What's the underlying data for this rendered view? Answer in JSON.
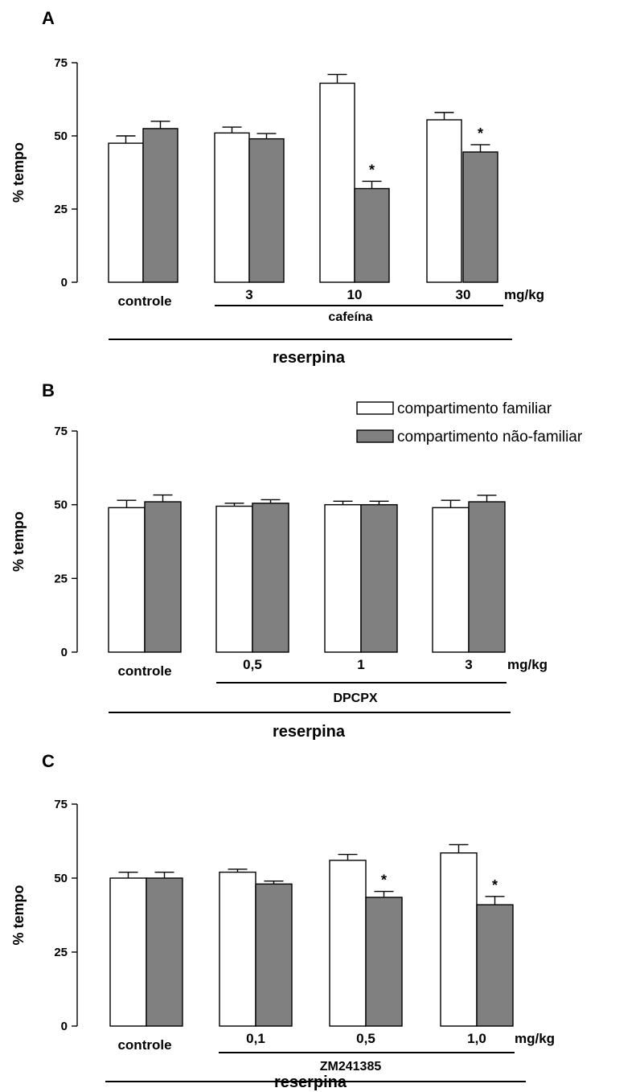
{
  "colors": {
    "compartimento_familiar": "#ffffff",
    "compartimento_nao_familiar": "#808080",
    "axis": "#000000"
  },
  "legend": {
    "items": [
      "compartimento familiar",
      "compartimento não-familiar"
    ]
  },
  "chart_data": [
    {
      "panel": "A",
      "type": "bar",
      "ylabel": "% tempo",
      "ylim": [
        0,
        75
      ],
      "yticks": [
        0,
        25,
        50,
        75
      ],
      "categories": [
        "controle",
        "3",
        "10",
        "30"
      ],
      "unit": "mg/kg",
      "drug": "cafeína",
      "pretreatment": "reserpina",
      "series": [
        {
          "name": "compartimento familiar",
          "values": [
            47.5,
            51,
            68,
            55.5
          ],
          "errors": [
            2.5,
            2,
            3,
            2.5
          ]
        },
        {
          "name": "compartimento não-familiar",
          "values": [
            52.5,
            49,
            32,
            44.5
          ],
          "errors": [
            2.5,
            1.8,
            2.5,
            2.5
          ]
        }
      ],
      "significance": [
        "",
        "",
        "*",
        "*"
      ]
    },
    {
      "panel": "B",
      "type": "bar",
      "ylabel": "% tempo",
      "ylim": [
        0,
        75
      ],
      "yticks": [
        0,
        25,
        50,
        75
      ],
      "categories": [
        "controle",
        "0,5",
        "1",
        "3"
      ],
      "unit": "mg/kg",
      "drug": "DPCPX",
      "pretreatment": "reserpina",
      "series": [
        {
          "name": "compartimento familiar",
          "values": [
            49,
            49.5,
            50,
            49
          ],
          "errors": [
            2.5,
            1,
            1.2,
            2.5
          ]
        },
        {
          "name": "compartimento não-familiar",
          "values": [
            51,
            50.5,
            50,
            51
          ],
          "errors": [
            2.3,
            1.2,
            1.2,
            2.2
          ]
        }
      ],
      "significance": [
        "",
        "",
        "",
        ""
      ]
    },
    {
      "panel": "C",
      "type": "bar",
      "ylabel": "% tempo",
      "ylim": [
        0,
        75
      ],
      "yticks": [
        0,
        25,
        50,
        75
      ],
      "categories": [
        "controle",
        "0,1",
        "0,5",
        "1,0"
      ],
      "unit": "mg/kg",
      "drug": "ZM241385",
      "pretreatment": "reserpina",
      "series": [
        {
          "name": "compartimento familiar",
          "values": [
            50,
            52,
            56,
            58.5
          ],
          "errors": [
            2,
            1,
            2,
            2.8
          ]
        },
        {
          "name": "compartimento não-familiar",
          "values": [
            50,
            48,
            43.5,
            41
          ],
          "errors": [
            2,
            1,
            2,
            2.8
          ]
        }
      ],
      "significance": [
        "",
        "",
        "*",
        "*"
      ]
    }
  ]
}
